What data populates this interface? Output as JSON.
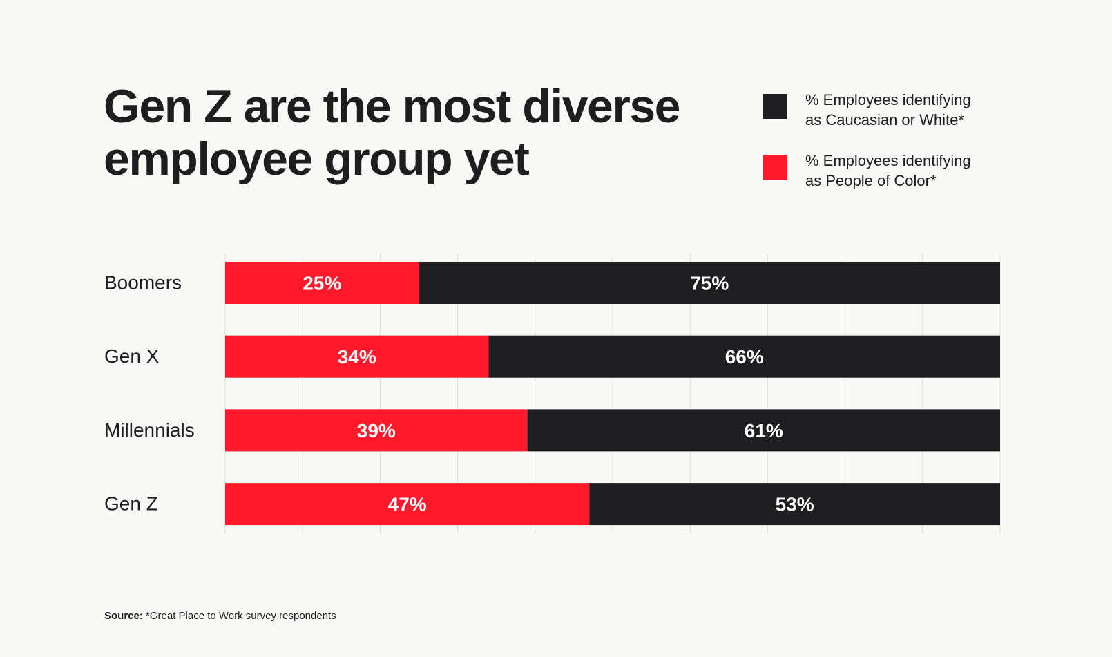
{
  "colors": {
    "background": "#f8f8f6",
    "white_group": "#1e1e20",
    "poc_group": "#ff1a2b",
    "grid": "#dcdcdc",
    "bar_label": "#ffffff",
    "text": "#1e1e20"
  },
  "title": {
    "line1": "Gen Z are the most diverse",
    "line2": "employee group yet"
  },
  "legend": [
    {
      "label_line1": "% Employees identifying",
      "label_line2": "as Caucasian or White*",
      "color": "#1e1e20"
    },
    {
      "label_line1": "% Employees identifying",
      "label_line2": "as People of Color*",
      "color": "#ff1a2b"
    }
  ],
  "chart_data": {
    "type": "bar",
    "orientation": "horizontal",
    "stacked": true,
    "title": "Gen Z are the most diverse employee group yet",
    "categories": [
      "Boomers",
      "Gen X",
      "Millennials",
      "Gen Z"
    ],
    "series": [
      {
        "name": "% Employees identifying as People of Color*",
        "values": [
          25,
          34,
          39,
          47
        ],
        "labels": [
          "25%",
          "34%",
          "39%",
          "47%"
        ],
        "color": "#ff1a2b"
      },
      {
        "name": "% Employees identifying as Caucasian or White*",
        "values": [
          75,
          66,
          61,
          53
        ],
        "labels": [
          "75%",
          "66%",
          "61%",
          "53%"
        ],
        "color": "#1e1e20"
      }
    ],
    "xlim": [
      0,
      100
    ],
    "grid": true,
    "legend_position": "top-right",
    "xlabel": "",
    "ylabel": ""
  },
  "source": {
    "label": "Source:",
    "text": " *Great Place to Work survey respondents"
  }
}
